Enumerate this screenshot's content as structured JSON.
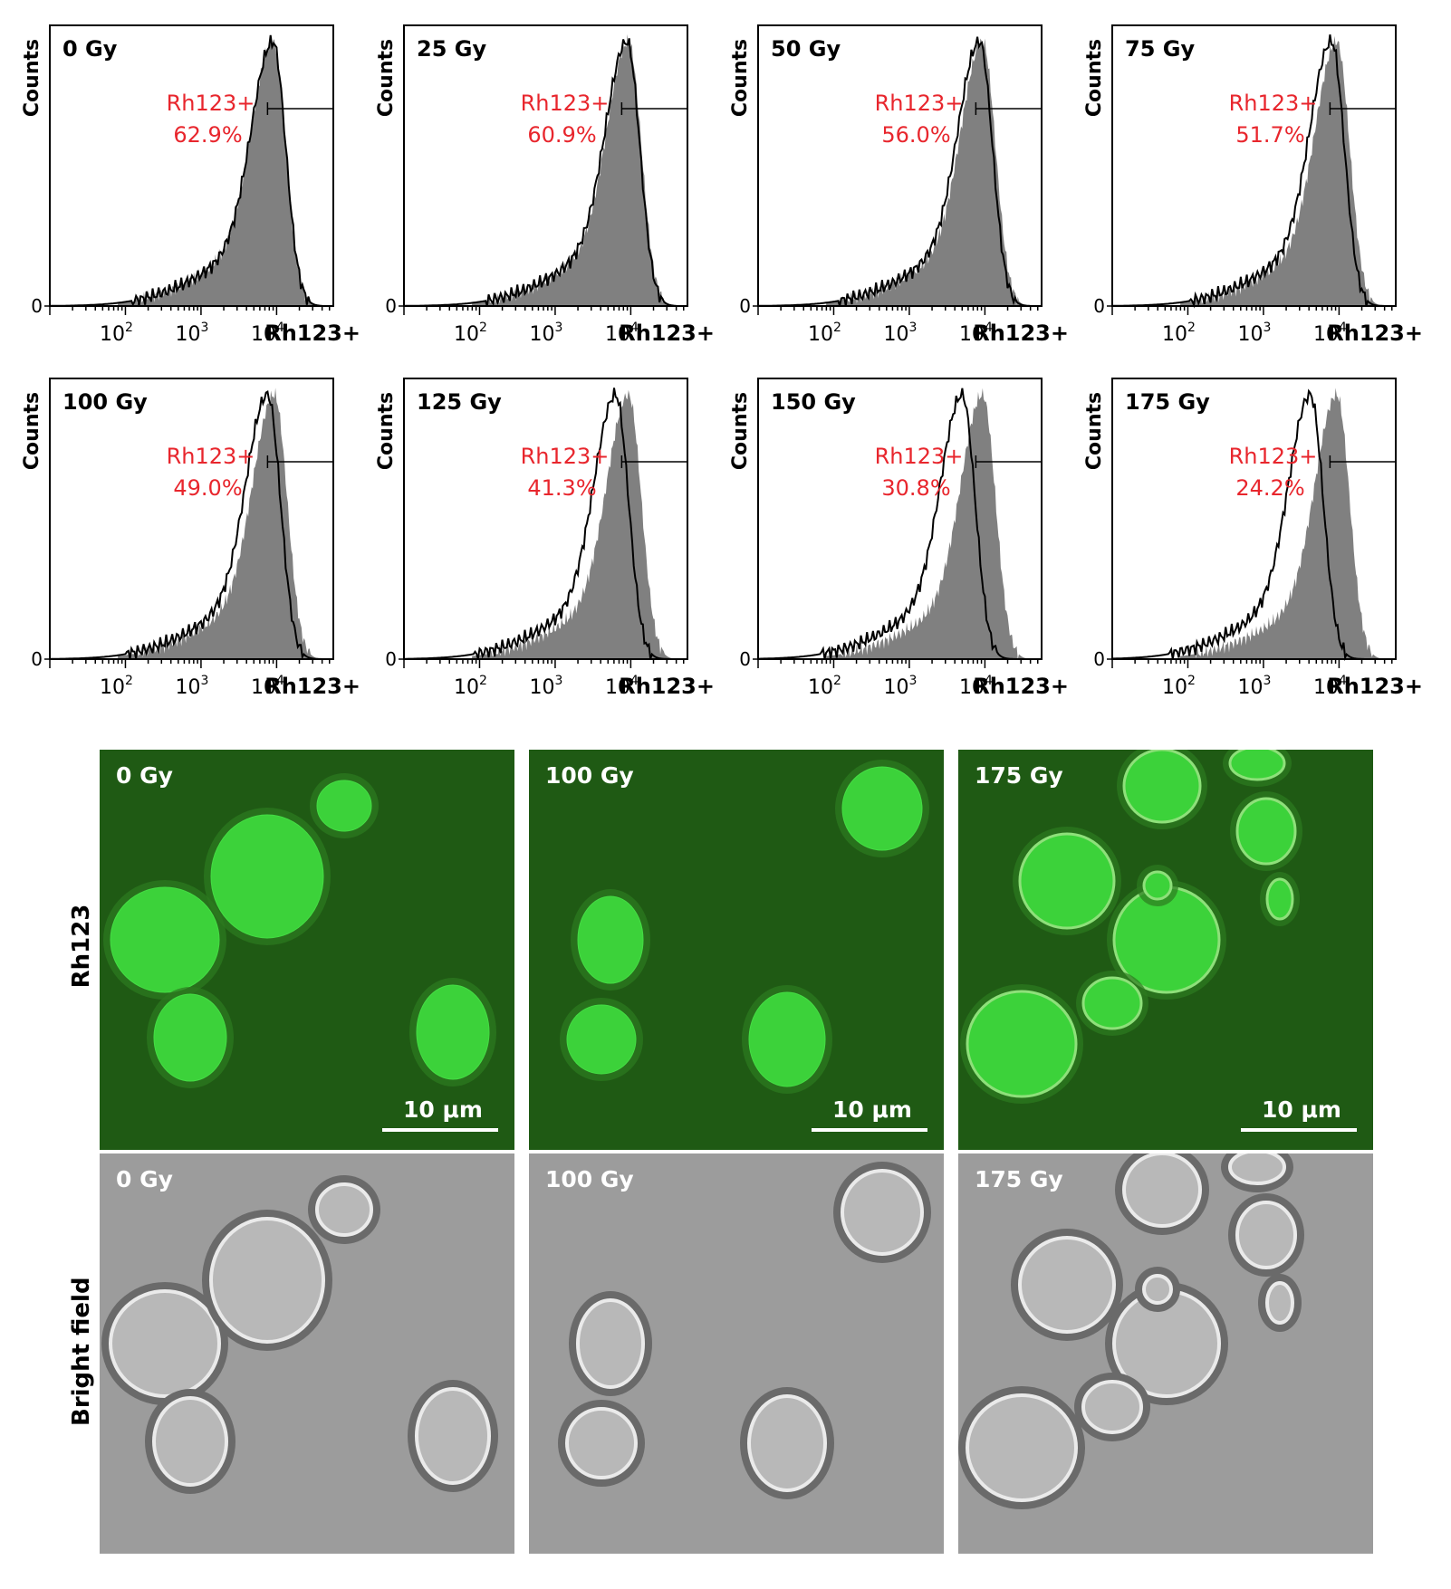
{
  "chart_data": [
    {
      "type": "histogram",
      "panel_label": "0 Gy",
      "ylabel": "Counts",
      "xlabel": "Rh123+",
      "y_tick": "0",
      "x_ticks": [
        "10^2",
        "10^3",
        "10^4"
      ],
      "gate_label": "Rh123+",
      "gate_value": "62.9%",
      "x_log_range": [
        1,
        4.75
      ],
      "filled_peak_log": 3.95,
      "outline_peak_log": 3.95
    },
    {
      "type": "histogram",
      "panel_label": "25 Gy",
      "ylabel": "Counts",
      "xlabel": "Rh123+",
      "y_tick": "0",
      "x_ticks": [
        "10^2",
        "10^3",
        "10^4"
      ],
      "gate_label": "Rh123+",
      "gate_value": "60.9%",
      "x_log_range": [
        1,
        4.75
      ],
      "filled_peak_log": 3.97,
      "outline_peak_log": 3.95
    },
    {
      "type": "histogram",
      "panel_label": "50 Gy",
      "ylabel": "Counts",
      "xlabel": "Rh123+",
      "y_tick": "0",
      "x_ticks": [
        "10^2",
        "10^3",
        "10^4"
      ],
      "gate_label": "Rh123+",
      "gate_value": "56.0%",
      "x_log_range": [
        1,
        4.75
      ],
      "filled_peak_log": 3.97,
      "outline_peak_log": 3.93
    },
    {
      "type": "histogram",
      "panel_label": "75 Gy",
      "ylabel": "Counts",
      "xlabel": "Rh123+",
      "y_tick": "0",
      "x_ticks": [
        "10^2",
        "10^3",
        "10^4"
      ],
      "gate_label": "Rh123+",
      "gate_value": "51.7%",
      "x_log_range": [
        1,
        4.75
      ],
      "filled_peak_log": 3.97,
      "outline_peak_log": 3.9
    },
    {
      "type": "histogram",
      "panel_label": "100 Gy",
      "ylabel": "Counts",
      "xlabel": "Rh123+",
      "y_tick": "0",
      "x_ticks": [
        "10^2",
        "10^3",
        "10^4"
      ],
      "gate_label": "Rh123+",
      "gate_value": "49.0%",
      "x_log_range": [
        1,
        4.75
      ],
      "filled_peak_log": 3.97,
      "outline_peak_log": 3.88
    },
    {
      "type": "histogram",
      "panel_label": "125 Gy",
      "ylabel": "Counts",
      "xlabel": "Rh123+",
      "y_tick": "0",
      "x_ticks": [
        "10^2",
        "10^3",
        "10^4"
      ],
      "gate_label": "Rh123+",
      "gate_value": "41.3%",
      "x_log_range": [
        1,
        4.75
      ],
      "filled_peak_log": 3.97,
      "outline_peak_log": 3.8
    },
    {
      "type": "histogram",
      "panel_label": "150 Gy",
      "ylabel": "Counts",
      "xlabel": "Rh123+",
      "y_tick": "0",
      "x_ticks": [
        "10^2",
        "10^3",
        "10^4"
      ],
      "gate_label": "Rh123+",
      "gate_value": "30.8%",
      "x_log_range": [
        1,
        4.75
      ],
      "filled_peak_log": 3.97,
      "outline_peak_log": 3.7
    },
    {
      "type": "histogram",
      "panel_label": "175 Gy",
      "ylabel": "Counts",
      "xlabel": "Rh123+",
      "y_tick": "0",
      "x_ticks": [
        "10^2",
        "10^3",
        "10^4"
      ],
      "gate_label": "Rh123+",
      "gate_value": "24.2%",
      "x_log_range": [
        1,
        4.75
      ],
      "filled_peak_log": 3.97,
      "outline_peak_log": 3.62
    }
  ],
  "microscopy": {
    "row_labels": [
      "Rh123",
      "Bright field"
    ],
    "panel_labels": [
      "0 Gy",
      "100 Gy",
      "175 Gy"
    ],
    "scale_bar": "10 μm",
    "colors": {
      "fluor_bg": "#1f5a14",
      "cell_green": "#3cd23a",
      "bf_bg": "#9c9c9c",
      "bf_ring": "#6a6a6a",
      "bf_inner": "#b8b8b8"
    }
  },
  "colors": {
    "gate_text": "#e8262d",
    "fill": "#808080",
    "axis": "#000000"
  }
}
